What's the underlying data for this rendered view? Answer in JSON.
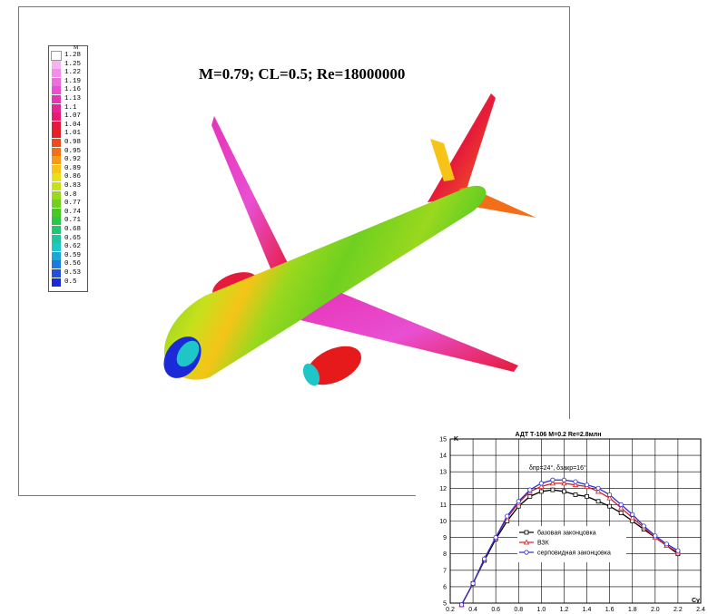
{
  "cfd": {
    "title": "M=0.79;   CL=0.5;   Re=18000000",
    "legend_title": "M",
    "legend": [
      {
        "label": "1.28",
        "color": "#ffffff"
      },
      {
        "label": "1.25",
        "color": "#f7b3ef"
      },
      {
        "label": "1.22",
        "color": "#f28ee6"
      },
      {
        "label": "1.19",
        "color": "#ee6ddd"
      },
      {
        "label": "1.16",
        "color": "#e94fd2"
      },
      {
        "label": "1.13",
        "color": "#e634b8"
      },
      {
        "label": "1.1",
        "color": "#e6249a"
      },
      {
        "label": "1.07",
        "color": "#e61a6e"
      },
      {
        "label": "1.04",
        "color": "#e61a3a"
      },
      {
        "label": "1.01",
        "color": "#e62020"
      },
      {
        "label": "0.98",
        "color": "#ee4a1a"
      },
      {
        "label": "0.95",
        "color": "#f36e18"
      },
      {
        "label": "0.92",
        "color": "#f59a17"
      },
      {
        "label": "0.89",
        "color": "#f5c417"
      },
      {
        "label": "0.86",
        "color": "#e8e018"
      },
      {
        "label": "0.83",
        "color": "#c6e01c"
      },
      {
        "label": "0.8",
        "color": "#9ad81e"
      },
      {
        "label": "0.77",
        "color": "#6fd020"
      },
      {
        "label": "0.74",
        "color": "#48c825"
      },
      {
        "label": "0.71",
        "color": "#2ec646"
      },
      {
        "label": "0.68",
        "color": "#22c672"
      },
      {
        "label": "0.65",
        "color": "#20c6a0"
      },
      {
        "label": "0.62",
        "color": "#1fc6c8"
      },
      {
        "label": "0.59",
        "color": "#1fa4d8"
      },
      {
        "label": "0.56",
        "color": "#1f7ae0"
      },
      {
        "label": "0.53",
        "color": "#1f50e0"
      },
      {
        "label": "0.5",
        "color": "#1a2ad6"
      }
    ]
  },
  "chart_data": {
    "type": "line",
    "title": "АДТ Т-106 М=0.2 Re=2.8млн",
    "annotation": "δпр=24°, δзакр=16°",
    "xlabel": "Cy",
    "ylabel": "K",
    "xlim": [
      0.2,
      2.4
    ],
    "ylim": [
      5,
      15
    ],
    "x_ticks": [
      "0.2",
      "0.4",
      "0.6",
      "0.8",
      "1.0",
      "1.2",
      "1.4",
      "1.6",
      "1.8",
      "2.0",
      "2.2",
      "2.4"
    ],
    "y_ticks": [
      "5",
      "6",
      "7",
      "8",
      "9",
      "10",
      "11",
      "12",
      "13",
      "14",
      "15"
    ],
    "grid": true,
    "legend_position": "center",
    "series": [
      {
        "name": "базовая законцовка",
        "color": "#000000",
        "marker": "square",
        "x": [
          0.3,
          0.4,
          0.5,
          0.6,
          0.7,
          0.8,
          0.9,
          1.0,
          1.1,
          1.2,
          1.3,
          1.4,
          1.5,
          1.6,
          1.7,
          1.8,
          1.9,
          2.0,
          2.1,
          2.2
        ],
        "y": [
          4.9,
          6.2,
          7.6,
          8.9,
          10.0,
          10.9,
          11.5,
          11.8,
          11.9,
          11.8,
          11.6,
          11.5,
          11.2,
          10.9,
          10.5,
          10.0,
          9.5,
          9.0,
          8.5,
          8.0
        ]
      },
      {
        "name": "ВЗК",
        "color": "#d42020",
        "marker": "triangle",
        "x": [
          0.3,
          0.4,
          0.5,
          0.6,
          0.7,
          0.8,
          0.9,
          1.0,
          1.1,
          1.2,
          1.3,
          1.4,
          1.5,
          1.6,
          1.7,
          1.8,
          1.9,
          2.0,
          2.1,
          2.2
        ],
        "y": [
          4.9,
          6.2,
          7.7,
          9.0,
          10.2,
          11.1,
          11.8,
          12.1,
          12.3,
          12.3,
          12.2,
          12.1,
          11.8,
          11.4,
          10.8,
          10.2,
          9.6,
          9.0,
          8.5,
          8.1
        ]
      },
      {
        "name": "серповидная  законцовка",
        "color": "#2c2cd4",
        "marker": "circle",
        "x": [
          0.3,
          0.4,
          0.5,
          0.6,
          0.7,
          0.8,
          0.9,
          1.0,
          1.1,
          1.2,
          1.3,
          1.4,
          1.5,
          1.6,
          1.7,
          1.8,
          1.9,
          2.0,
          2.1,
          2.2
        ],
        "y": [
          4.9,
          6.2,
          7.7,
          9.0,
          10.3,
          11.2,
          11.9,
          12.3,
          12.5,
          12.5,
          12.4,
          12.2,
          12.0,
          11.6,
          11.0,
          10.4,
          9.7,
          9.1,
          8.6,
          8.2
        ]
      }
    ]
  }
}
